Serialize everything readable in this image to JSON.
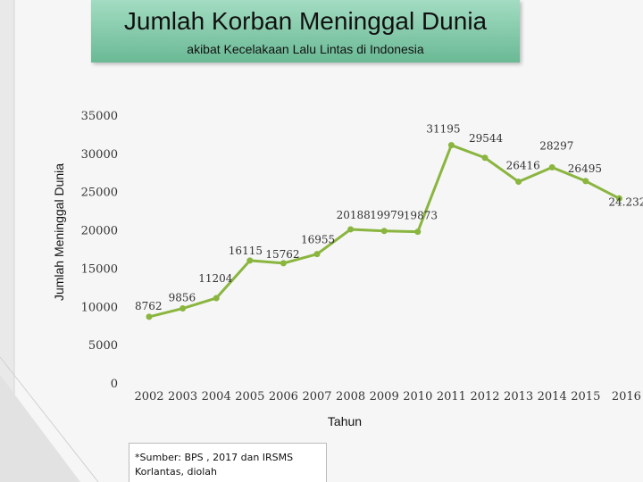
{
  "header": {
    "title": "Jumlah Korban Meninggal Dunia",
    "subtitle": "akibat Kecelakaan Lalu Lintas di Indonesia"
  },
  "source_note": "*Sumber: BPS , 2017 dan IRSMS Korlantas, diolah",
  "colors": {
    "line": "#8ab53e",
    "title_box": "#7cc5a4"
  },
  "chart_data": {
    "type": "line",
    "title": "Jumlah Korban Meninggal Dunia",
    "subtitle": "akibat Kecelakaan Lalu Lintas di Indonesia",
    "xlabel": "Tahun",
    "ylabel": "Jumlah Meninggal Dunia",
    "ylim": [
      0,
      35000
    ],
    "yticks": [
      "0",
      "5000",
      "10000",
      "15000",
      "20000",
      "25000",
      "30000",
      "35000"
    ],
    "grid": false,
    "categories": [
      "2002",
      "2003",
      "2004",
      "2005",
      "2006",
      "2007",
      "2008",
      "2009",
      "2010",
      "2011",
      "2012",
      "2013",
      "2014",
      "2015",
      "2016"
    ],
    "series": [
      {
        "values": [
          8762,
          9856,
          11204,
          16115,
          15762,
          16955,
          20188,
          19979,
          19873,
          31195,
          29544,
          26416,
          28297,
          26495,
          24232
        ],
        "labels": [
          "8762",
          "9856",
          "11204",
          "16115",
          "15762",
          "16955",
          "20188",
          "19979",
          "19873",
          "31195",
          "29544",
          "26416",
          "28297",
          "26495",
          "24.232"
        ]
      }
    ]
  }
}
